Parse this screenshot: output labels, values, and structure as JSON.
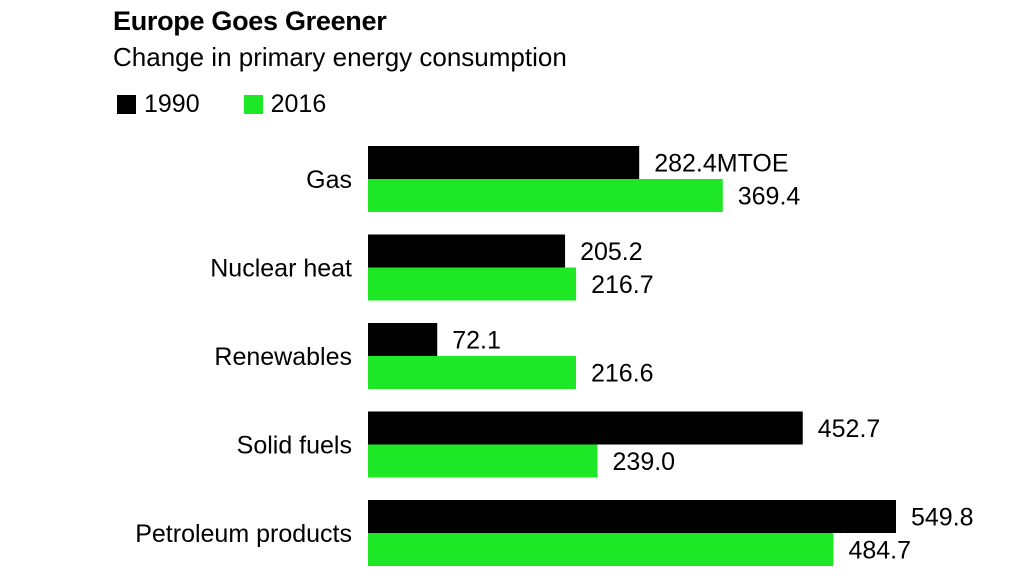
{
  "title": "Europe Goes Greener",
  "subtitle": "Change in primary energy consumption",
  "colors": {
    "1990": "#000000",
    "2016": "#1ee826"
  },
  "chart_data": {
    "type": "bar",
    "orientation": "horizontal",
    "title": "Europe Goes Greener",
    "subtitle": "Change in primary energy consumption",
    "unit": "MTOE",
    "categories": [
      "Gas",
      "Nuclear heat",
      "Renewables",
      "Solid fuels",
      "Petroleum products"
    ],
    "series": [
      {
        "name": "1990",
        "color": "#000000",
        "values": [
          282.4,
          205.2,
          72.1,
          452.7,
          549.8
        ],
        "labels": [
          "282.4MTOE",
          "205.2",
          "72.1",
          "452.7",
          "549.8"
        ]
      },
      {
        "name": "2016",
        "color": "#1ee826",
        "values": [
          369.4,
          216.7,
          216.6,
          239.0,
          484.7
        ],
        "labels": [
          "369.4",
          "216.7",
          "216.6",
          "239.0",
          "484.7"
        ]
      }
    ],
    "legend": "top-left",
    "grid": false
  }
}
